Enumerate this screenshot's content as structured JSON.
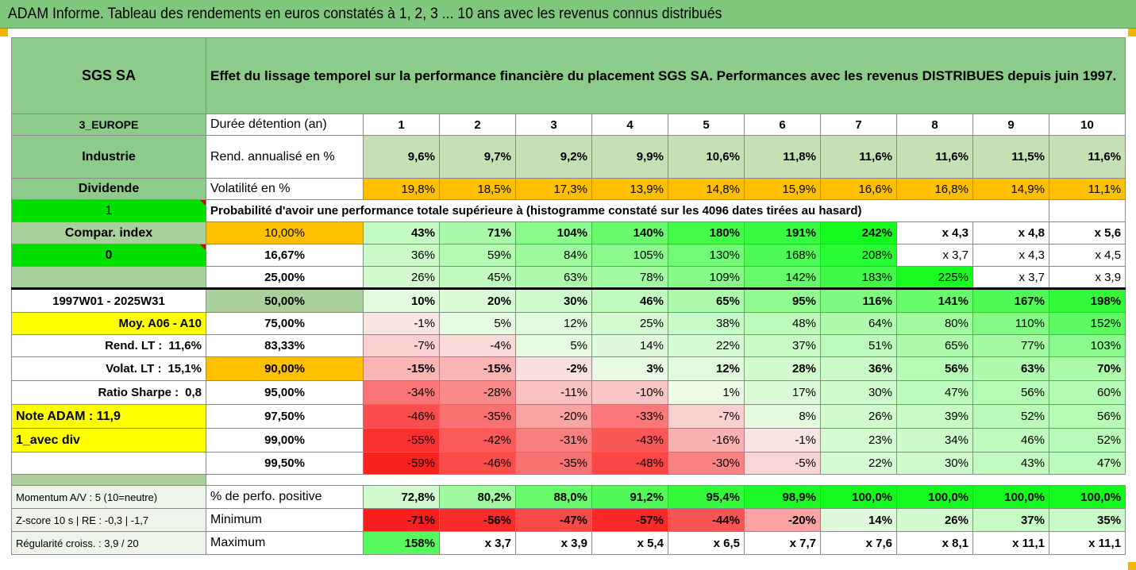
{
  "title": "ADAM Informe. Tableau des rendements en euros constatés à 1, 2, 3 ... 10 ans avec les revenus connus distribués",
  "header": {
    "company": "SGS SA",
    "description": "Effet du lissage temporel sur la performance financière du placement SGS SA. Performances avec les revenus DISTRIBUES depuis juin 1997."
  },
  "rows_top": {
    "region": "3_EUROPE",
    "duration_label": "Durée détention (an)",
    "years": [
      "1",
      "2",
      "3",
      "4",
      "5",
      "6",
      "7",
      "8",
      "9",
      "10"
    ],
    "sector": "Industrie",
    "rend_label": "Rend. annualisé en %",
    "rend": [
      "9,6%",
      "9,7%",
      "9,2%",
      "9,9%",
      "10,6%",
      "11,8%",
      "11,6%",
      "11,6%",
      "11,5%",
      "11,6%"
    ],
    "dividend_label": "Dividende",
    "vol_label": "Volatilité en %",
    "vol": [
      "19,8%",
      "18,5%",
      "17,3%",
      "13,9%",
      "14,8%",
      "15,9%",
      "16,6%",
      "16,8%",
      "14,9%",
      "11,1%"
    ],
    "one": "1",
    "prob_label": "Probabilité d'avoir une performance totale supérieure à (histogramme constaté sur les 4096 dates tirées au hasard)"
  },
  "prob_rows": [
    {
      "side": "Compar. index",
      "pct": "10,00%",
      "values": [
        "43%",
        "71%",
        "104%",
        "140%",
        "180%",
        "191%",
        "242%",
        "x 4,3",
        "x 4,8",
        "x 5,6"
      ]
    },
    {
      "side": "0",
      "pct": "16,67%",
      "values": [
        "36%",
        "59%",
        "84%",
        "105%",
        "130%",
        "168%",
        "208%",
        "x 3,7",
        "x 4,3",
        "x 4,5"
      ]
    },
    {
      "side": "",
      "pct": "25,00%",
      "values": [
        "26%",
        "45%",
        "63%",
        "78%",
        "109%",
        "142%",
        "183%",
        "225%",
        "x 3,7",
        "x 3,9"
      ]
    },
    {
      "side": "1997W01 - 2025W31",
      "pct": "50,00%",
      "values": [
        "10%",
        "20%",
        "30%",
        "46%",
        "65%",
        "95%",
        "116%",
        "141%",
        "167%",
        "198%"
      ]
    },
    {
      "side": "Moy. A06 - A10",
      "pct": "75,00%",
      "values": [
        "-1%",
        "5%",
        "12%",
        "25%",
        "38%",
        "48%",
        "64%",
        "80%",
        "110%",
        "152%"
      ]
    },
    {
      "side_label": "Rend. LT :",
      "side_value": "11,6%",
      "pct": "83,33%",
      "values": [
        "-7%",
        "-4%",
        "5%",
        "14%",
        "22%",
        "37%",
        "51%",
        "65%",
        "77%",
        "103%"
      ]
    },
    {
      "side_label": "Volat. LT :",
      "side_value": "15,1%",
      "pct": "90,00%",
      "values": [
        "-15%",
        "-15%",
        "-2%",
        "3%",
        "12%",
        "28%",
        "36%",
        "56%",
        "63%",
        "70%"
      ]
    },
    {
      "side_label": "Ratio Sharpe :",
      "side_value": "0,8",
      "pct": "95,00%",
      "values": [
        "-34%",
        "-28%",
        "-11%",
        "-10%",
        "1%",
        "17%",
        "30%",
        "47%",
        "56%",
        "60%"
      ]
    },
    {
      "side": "Note ADAM : 11,9",
      "pct": "97,50%",
      "values": [
        "-46%",
        "-35%",
        "-20%",
        "-33%",
        "-7%",
        "8%",
        "26%",
        "39%",
        "52%",
        "56%"
      ]
    },
    {
      "side": "1_avec div",
      "pct": "99,00%",
      "values": [
        "-55%",
        "-42%",
        "-31%",
        "-43%",
        "-16%",
        "-1%",
        "23%",
        "34%",
        "46%",
        "52%"
      ]
    },
    {
      "side": "",
      "pct": "99,50%",
      "values": [
        "-59%",
        "-46%",
        "-35%",
        "-48%",
        "-30%",
        "-5%",
        "22%",
        "30%",
        "43%",
        "47%"
      ]
    }
  ],
  "bottom_rows": [
    {
      "side": "Momentum A/V : 5 (10=neutre)",
      "label": "% de perfo. positive",
      "values": [
        "72,8%",
        "80,2%",
        "88,0%",
        "91,2%",
        "95,4%",
        "98,9%",
        "100,0%",
        "100,0%",
        "100,0%",
        "100,0%"
      ]
    },
    {
      "side": "Z-score 10 s  |  RE : -0,3  |  -1,7",
      "label": "Minimum",
      "values": [
        "-71%",
        "-56%",
        "-47%",
        "-57%",
        "-44%",
        "-20%",
        "14%",
        "26%",
        "37%",
        "35%"
      ]
    },
    {
      "side": "Régularité croiss. : 3,9 / 20",
      "label": "Maximum",
      "values": [
        "158%",
        "x 3,7",
        "x 3,9",
        "x 5,4",
        "x 6,5",
        "x 7,7",
        "x 7,6",
        "x 8,1",
        "x 11,1",
        "x 11,1"
      ]
    }
  ],
  "colors": {
    "header_green": "#8dcb8a",
    "light_green": "#c4e0b4",
    "orange": "#ffc000",
    "yellow": "#ffff00",
    "bright_green": "#00e000",
    "red_text": "#d40000"
  }
}
